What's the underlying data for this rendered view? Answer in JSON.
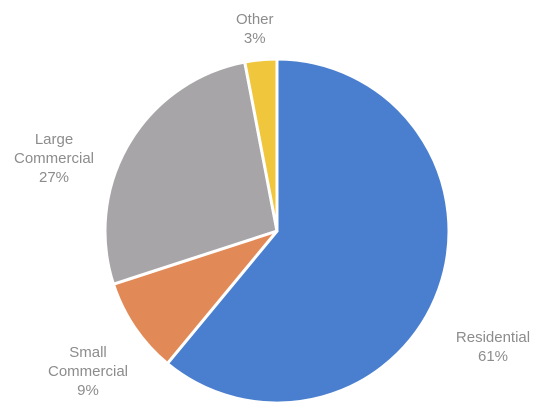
{
  "chart_data": {
    "type": "pie",
    "slices": [
      {
        "label": "Residential",
        "value": 61,
        "value_label": "61%",
        "color": "#4a7fcf"
      },
      {
        "label": "Small Commercial",
        "value": 9,
        "value_label": "9%",
        "color": "#e28a57"
      },
      {
        "label": "Large Commercial",
        "value": 27,
        "value_label": "27%",
        "color": "#a7a5a7"
      },
      {
        "label": "Other",
        "value": 3,
        "value_label": "3%",
        "color": "#f0c63c"
      }
    ],
    "label_color": "#8c8c8c"
  }
}
